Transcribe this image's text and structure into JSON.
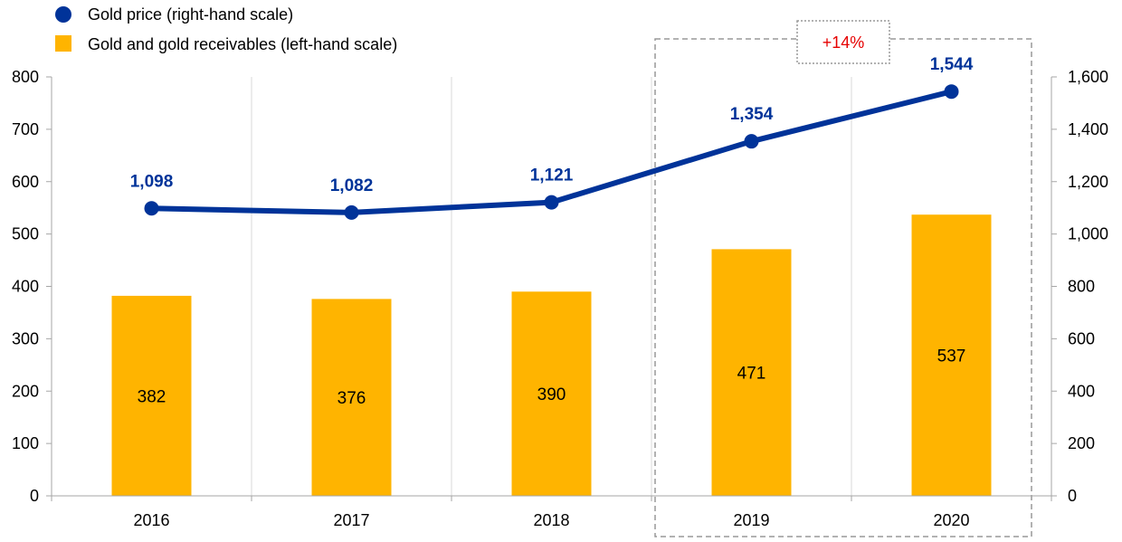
{
  "chart_data": {
    "type": "bar+line",
    "categories": [
      "2016",
      "2017",
      "2018",
      "2019",
      "2020"
    ],
    "series": [
      {
        "name": "Gold and gold receivables (left-hand scale)",
        "type": "bar",
        "axis": "left",
        "values": [
          382,
          376,
          390,
          471,
          537
        ],
        "labels": [
          "382",
          "376",
          "390",
          "471",
          "537"
        ],
        "color": "#FFB400"
      },
      {
        "name": "Gold price (right-hand scale)",
        "type": "line",
        "axis": "right",
        "values": [
          1098,
          1082,
          1121,
          1354,
          1544
        ],
        "labels": [
          "1,098",
          "1,082",
          "1,121",
          "1,354",
          "1,544"
        ],
        "color": "#003399"
      }
    ],
    "y_left": {
      "range": [
        0,
        800
      ],
      "ticks": [
        0,
        100,
        200,
        300,
        400,
        500,
        600,
        700,
        800
      ],
      "tick_labels": [
        "0",
        "100",
        "200",
        "300",
        "400",
        "500",
        "600",
        "700",
        "800"
      ]
    },
    "y_right": {
      "range": [
        0,
        1600
      ],
      "ticks": [
        0,
        200,
        400,
        600,
        800,
        1000,
        1200,
        1400,
        1600
      ],
      "tick_labels": [
        "0",
        "200",
        "400",
        "600",
        "800",
        "1,000",
        "1,200",
        "1,400",
        "1,600"
      ]
    },
    "annotation": {
      "text": "+14%",
      "color": "#E60000",
      "covers": [
        "2019",
        "2020"
      ]
    },
    "grid": "vertical",
    "legend_position": "top-left",
    "title": "",
    "xlabel": "",
    "ylabel": ""
  }
}
